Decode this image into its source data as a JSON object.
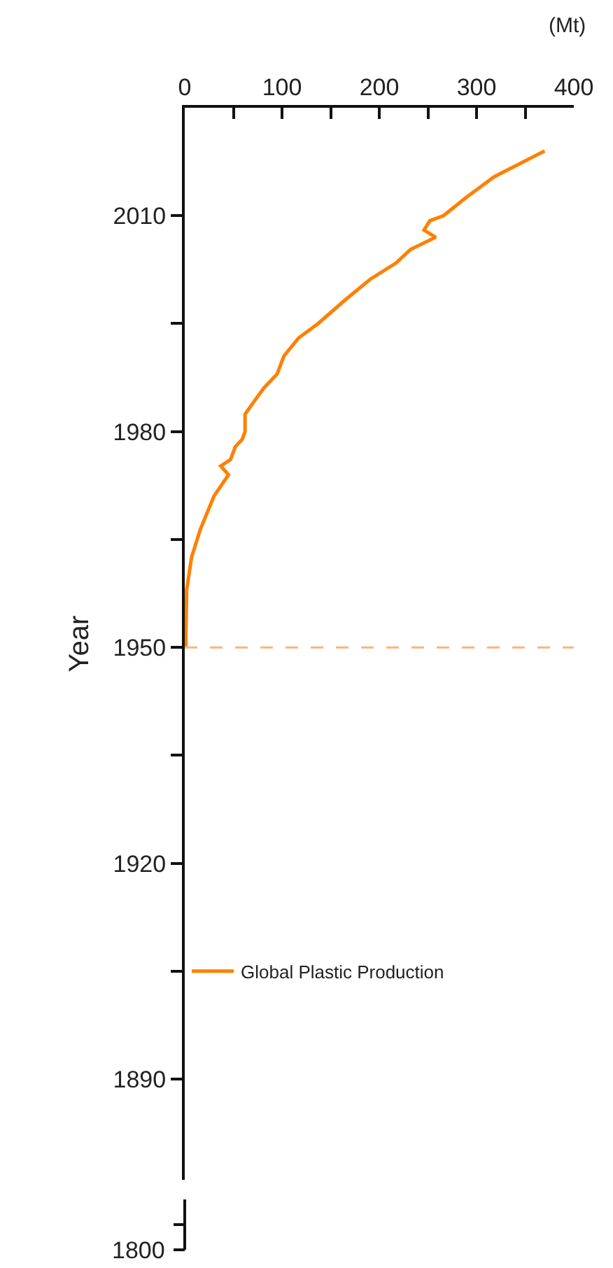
{
  "chart_data": [
    {
      "type": "line",
      "orientation": "horizontal",
      "xlabel": "(Mt)",
      "ylabel": "Year",
      "xlim": [
        0,
        400
      ],
      "xticks": [
        0,
        {
          "value": 50,
          "label": null
        },
        100,
        {
          "value": 150,
          "label": null
        },
        200,
        {
          "value": 250,
          "label": null
        },
        300,
        {
          "value": 350,
          "label": null
        },
        400
      ],
      "ylim": [
        1876,
        2025
      ],
      "yticks": [
        {
          "value": 1905,
          "label": null
        },
        1890,
        1920,
        {
          "value": 1935,
          "label": null
        },
        1950,
        {
          "value": 1965,
          "label": null
        },
        1980,
        {
          "value": 1995,
          "label": null
        },
        2010
      ],
      "legend": "bottom left",
      "annotations": [
        "1800"
      ],
      "series": [
        {
          "name": "Global Plastic Production",
          "color": "#ff8000",
          "x": [
            1950,
            1958,
            1962.5,
            1966.4,
            1971,
            1974,
            1975.2,
            1976.1,
            1977.9,
            1978.9,
            1980,
            1982.4,
            1983,
            1986,
            1988,
            1990.5,
            1993,
            1995,
            1998.3,
            2001.2,
            2003.4,
            2005.3,
            2007,
            2008,
            2009.3,
            2010,
            2012.5,
            2015.4,
            2019
          ],
          "values": [
            1,
            2,
            7,
            16,
            30,
            45,
            37,
            47,
            52,
            59,
            62,
            62,
            65,
            81,
            95,
            102,
            117,
            137,
            165,
            191,
            217,
            232,
            258,
            246,
            252,
            266,
            289,
            318,
            370
          ]
        }
      ],
      "ref_lines": [
        {
          "axis": "y",
          "value": 1950,
          "color": "#fbb47a",
          "line_style": "dashed"
        }
      ]
    }
  ]
}
